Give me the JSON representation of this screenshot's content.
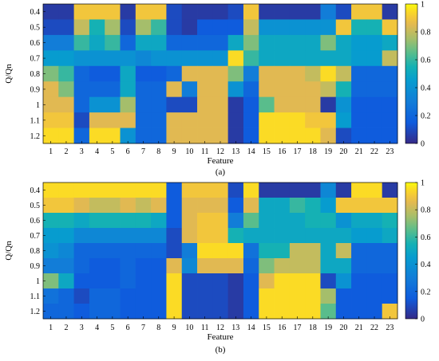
{
  "chart_data": [
    {
      "type": "heatmap",
      "panel_label": "(a)",
      "xlabel": "Feature",
      "ylabel": "Q/Qn",
      "x_categories": [
        "1",
        "2",
        "3",
        "4",
        "5",
        "6",
        "7",
        "8",
        "9",
        "10",
        "11",
        "12",
        "13",
        "14",
        "15",
        "16",
        "17",
        "18",
        "19",
        "20",
        "21",
        "22",
        "23"
      ],
      "y_categories": [
        "0.4",
        "0.5",
        "0.6",
        "0.7",
        "0.8",
        "0.9",
        "1",
        "1.1",
        "1.2"
      ],
      "colorbar": {
        "min": 0,
        "max": 1,
        "ticks": [
          "0",
          "0.2",
          "0.4",
          "0.6",
          "0.8",
          "1"
        ],
        "colormap": "parula"
      },
      "values": [
        [
          0.05,
          0.05,
          0.9,
          0.9,
          0.9,
          0.05,
          0.9,
          0.9,
          0.1,
          0.05,
          0.05,
          0.05,
          0.1,
          0.9,
          0.05,
          0.05,
          0.05,
          0.05,
          0.3,
          0.1,
          0.9,
          0.9,
          0.05
        ],
        [
          0.1,
          0.1,
          0.8,
          0.55,
          0.75,
          0.1,
          0.75,
          0.6,
          0.1,
          0.05,
          0.15,
          0.15,
          0.15,
          0.8,
          0.4,
          0.4,
          0.4,
          0.4,
          0.4,
          0.9,
          0.55,
          0.55,
          0.9
        ],
        [
          0.3,
          0.3,
          0.6,
          0.5,
          0.6,
          0.2,
          0.5,
          0.5,
          0.2,
          0.2,
          0.2,
          0.2,
          0.5,
          0.7,
          0.5,
          0.5,
          0.5,
          0.5,
          0.7,
          0.5,
          0.45,
          0.45,
          0.5
        ],
        [
          0.45,
          0.45,
          0.4,
          0.4,
          0.4,
          0.4,
          0.35,
          0.4,
          0.4,
          0.4,
          0.4,
          0.4,
          0.95,
          0.6,
          0.5,
          0.5,
          0.5,
          0.5,
          0.5,
          0.5,
          0.45,
          0.45,
          0.8
        ],
        [
          0.7,
          0.6,
          0.2,
          0.15,
          0.15,
          0.5,
          0.15,
          0.15,
          0.2,
          0.85,
          0.85,
          0.85,
          0.7,
          0.3,
          0.85,
          0.85,
          0.85,
          0.8,
          0.95,
          0.8,
          0.2,
          0.2,
          0.2
        ],
        [
          0.85,
          0.7,
          0.2,
          0.2,
          0.2,
          0.5,
          0.2,
          0.2,
          0.85,
          0.3,
          0.85,
          0.85,
          0.4,
          0.2,
          0.85,
          0.85,
          0.85,
          0.85,
          0.8,
          0.55,
          0.2,
          0.2,
          0.2
        ],
        [
          0.85,
          0.85,
          0.2,
          0.4,
          0.4,
          0.75,
          0.2,
          0.2,
          0.1,
          0.1,
          0.85,
          0.85,
          0.05,
          0.15,
          0.65,
          0.85,
          0.85,
          0.85,
          0.05,
          0.4,
          0.15,
          0.15,
          0.15
        ],
        [
          0.9,
          0.9,
          0.1,
          0.85,
          0.85,
          0.85,
          0.2,
          0.2,
          0.85,
          0.85,
          0.85,
          0.85,
          0.05,
          0.15,
          0.95,
          0.95,
          0.95,
          0.9,
          0.9,
          0.45,
          0.15,
          0.15,
          0.15
        ],
        [
          0.95,
          0.95,
          0.2,
          0.95,
          0.95,
          0.4,
          0.2,
          0.2,
          0.85,
          0.85,
          0.85,
          0.85,
          0.05,
          0.15,
          0.95,
          0.95,
          0.95,
          0.95,
          0.85,
          0.1,
          0.15,
          0.15,
          0.15
        ]
      ]
    },
    {
      "type": "heatmap",
      "panel_label": "(b)",
      "xlabel": "Feature",
      "ylabel": "Q/Qn",
      "x_categories": [
        "1",
        "2",
        "3",
        "4",
        "5",
        "6",
        "7",
        "8",
        "9",
        "10",
        "11",
        "12",
        "13",
        "14",
        "15",
        "16",
        "17",
        "18",
        "19",
        "20",
        "21",
        "22",
        "23"
      ],
      "y_categories": [
        "0.4",
        "0.5",
        "0.6",
        "0.7",
        "0.8",
        "0.9",
        "1",
        "1.1",
        "1.2"
      ],
      "colorbar": {
        "min": 0,
        "max": 1,
        "ticks": [
          "0",
          "0.2",
          "0.4",
          "0.6",
          "0.8",
          "1"
        ],
        "colormap": "parula"
      },
      "values": [
        [
          0.95,
          0.95,
          0.95,
          0.95,
          0.95,
          0.95,
          0.95,
          0.95,
          0.15,
          0.9,
          0.9,
          0.9,
          0.1,
          0.95,
          0.05,
          0.05,
          0.05,
          0.05,
          0.35,
          0.05,
          0.95,
          0.95,
          0.05
        ],
        [
          0.9,
          0.9,
          0.85,
          0.8,
          0.8,
          0.85,
          0.8,
          0.85,
          0.15,
          0.85,
          0.85,
          0.85,
          0.15,
          0.85,
          0.5,
          0.5,
          0.6,
          0.55,
          0.45,
          0.9,
          0.9,
          0.9,
          0.9
        ],
        [
          0.55,
          0.55,
          0.5,
          0.55,
          0.55,
          0.55,
          0.55,
          0.5,
          0.15,
          0.85,
          0.9,
          0.9,
          0.3,
          0.65,
          0.5,
          0.5,
          0.5,
          0.55,
          0.55,
          0.4,
          0.5,
          0.5,
          0.55
        ],
        [
          0.45,
          0.45,
          0.35,
          0.35,
          0.35,
          0.35,
          0.35,
          0.35,
          0.1,
          0.85,
          0.9,
          0.9,
          0.55,
          0.5,
          0.5,
          0.5,
          0.5,
          0.5,
          0.5,
          0.5,
          0.45,
          0.45,
          0.5
        ],
        [
          0.4,
          0.35,
          0.2,
          0.2,
          0.2,
          0.2,
          0.2,
          0.2,
          0.1,
          0.3,
          0.95,
          0.95,
          0.95,
          0.25,
          0.55,
          0.55,
          0.8,
          0.8,
          0.5,
          0.8,
          0.2,
          0.2,
          0.2
        ],
        [
          0.3,
          0.3,
          0.2,
          0.15,
          0.15,
          0.2,
          0.15,
          0.15,
          0.85,
          0.35,
          0.85,
          0.85,
          0.85,
          0.2,
          0.7,
          0.8,
          0.8,
          0.8,
          0.5,
          0.5,
          0.2,
          0.2,
          0.2
        ],
        [
          0.7,
          0.5,
          0.15,
          0.15,
          0.15,
          0.2,
          0.15,
          0.15,
          0.95,
          0.1,
          0.1,
          0.1,
          0.05,
          0.15,
          0.85,
          0.95,
          0.95,
          0.95,
          0.1,
          0.4,
          0.15,
          0.15,
          0.15
        ],
        [
          0.25,
          0.2,
          0.1,
          0.2,
          0.2,
          0.15,
          0.15,
          0.15,
          0.95,
          0.1,
          0.1,
          0.1,
          0.05,
          0.15,
          0.95,
          0.95,
          0.95,
          0.95,
          0.75,
          0.15,
          0.15,
          0.15,
          0.15
        ],
        [
          0.2,
          0.2,
          0.15,
          0.2,
          0.2,
          0.15,
          0.15,
          0.15,
          0.95,
          0.1,
          0.1,
          0.1,
          0.05,
          0.15,
          0.95,
          0.95,
          0.95,
          0.95,
          0.65,
          0.15,
          0.15,
          0.15,
          0.9
        ]
      ]
    }
  ]
}
